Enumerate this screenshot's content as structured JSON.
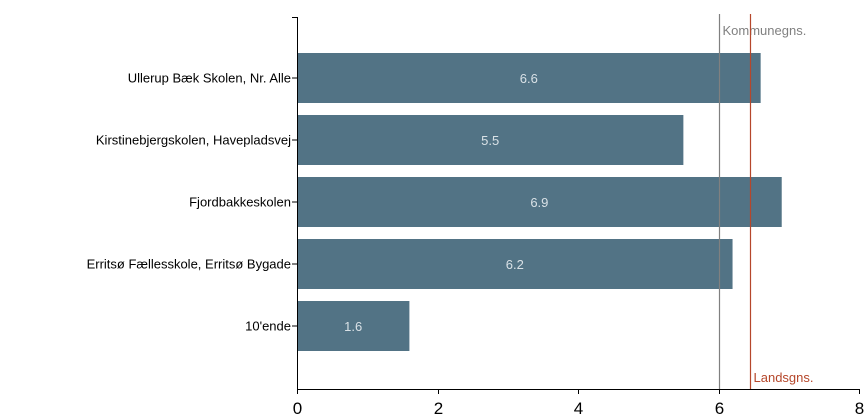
{
  "chart_data": {
    "type": "bar",
    "orientation": "horizontal",
    "categories": [
      "Ullerup Bæk Skolen, Nr. Alle",
      "Kirstinebjergskolen, Havepladsvej",
      "Fjordbakkeskolen",
      "Erritsø Fællesskole, Erritsø Bygade",
      "10'ende"
    ],
    "values": [
      6.6,
      5.5,
      6.9,
      6.2,
      1.6
    ],
    "data_labels": [
      "6.6",
      "5.5",
      "6.9",
      "6.2",
      "1.6"
    ],
    "xlim": [
      0,
      8
    ],
    "x_ticks": [
      0,
      2,
      4,
      6,
      8
    ],
    "x_tick_labels": [
      "0",
      "2",
      "4",
      "6",
      "8"
    ],
    "grid": false,
    "title": "",
    "xlabel": "",
    "ylabel": "",
    "reference_lines": [
      {
        "label": "Kommunegns.",
        "value": 6.0,
        "color": "#808080",
        "label_position": "top"
      },
      {
        "label": "Landsgns.",
        "value": 6.45,
        "color": "#b5472b",
        "label_position": "bottom"
      }
    ],
    "colors": {
      "bar": "#527385",
      "bar_label": "#d9e1e6",
      "axis": "#000000"
    }
  }
}
